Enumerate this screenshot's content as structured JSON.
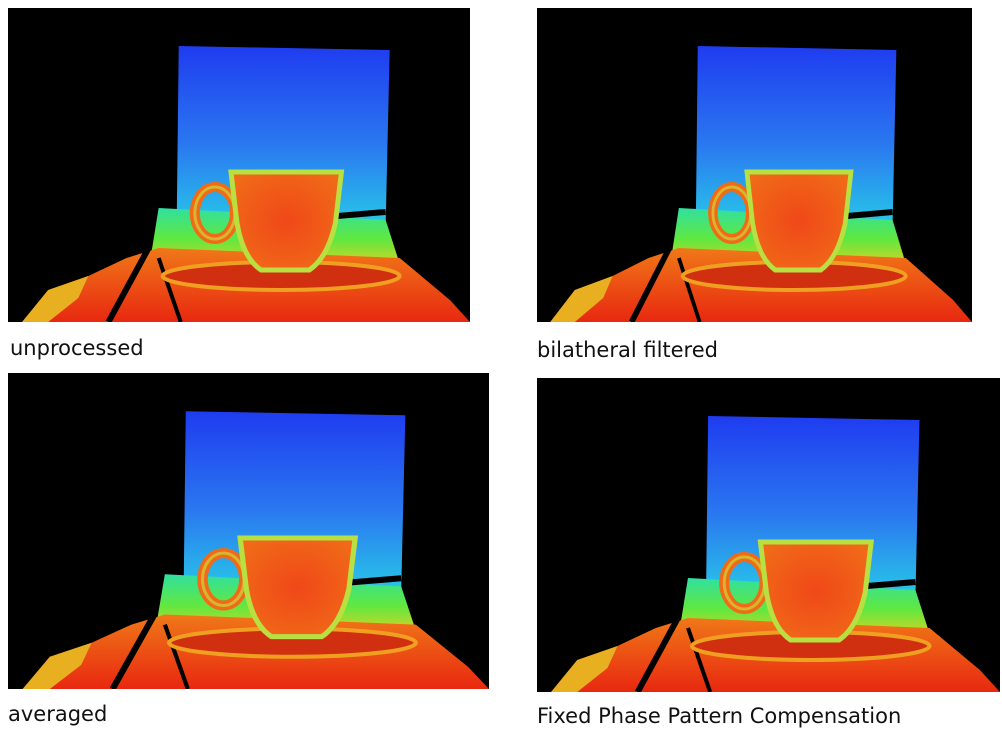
{
  "panels": [
    {
      "caption": "unprocessed"
    },
    {
      "caption": "bilatheral filtered"
    },
    {
      "caption": "averaged"
    },
    {
      "caption": "Fixed Phase Pattern Compensation"
    }
  ]
}
